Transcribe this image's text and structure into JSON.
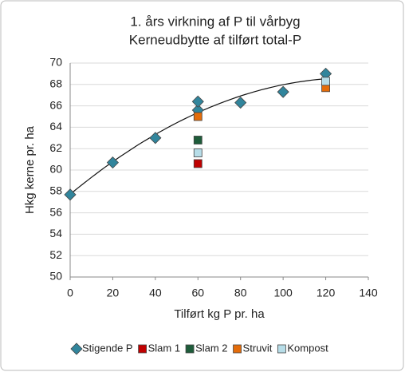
{
  "chart_data": {
    "type": "scatter",
    "title": "1. års virkning af P til vårbyg",
    "subtitle": "Kerneudbytte af tilført total-P",
    "x_label": "Tilført kg P pr. ha",
    "y_label": "Hkg kerne pr. ha",
    "xlim": [
      0,
      140
    ],
    "xticks": [
      0,
      20,
      40,
      60,
      80,
      100,
      120,
      140
    ],
    "ylim": [
      50,
      70
    ],
    "yticks": [
      50,
      52,
      54,
      56,
      58,
      60,
      62,
      64,
      66,
      68,
      70
    ],
    "grid": true,
    "trendline": "polynomial",
    "legend": "bottom",
    "series": [
      {
        "name": "Stigende P",
        "color": "#31859c",
        "marker": "diamond",
        "x": [
          0,
          20,
          40,
          60,
          60,
          80,
          100,
          120
        ],
        "values": [
          57.7,
          60.7,
          63.0,
          65.6,
          66.4,
          66.3,
          67.3,
          69.0
        ]
      },
      {
        "name": "Slam 1",
        "color": "#c00000",
        "marker": "square",
        "x": [
          60
        ],
        "values": [
          60.6
        ]
      },
      {
        "name": "Slam 2",
        "color": "#1e5c3a",
        "marker": "square",
        "x": [
          60
        ],
        "values": [
          62.8
        ]
      },
      {
        "name": "Struvit",
        "color": "#e46c0a",
        "marker": "square",
        "x": [
          60,
          120
        ],
        "values": [
          65.0,
          67.7
        ]
      },
      {
        "name": "Kompost",
        "color": "#b7dde8",
        "marker": "square",
        "x": [
          60,
          120
        ],
        "values": [
          61.6,
          68.3
        ]
      }
    ]
  }
}
